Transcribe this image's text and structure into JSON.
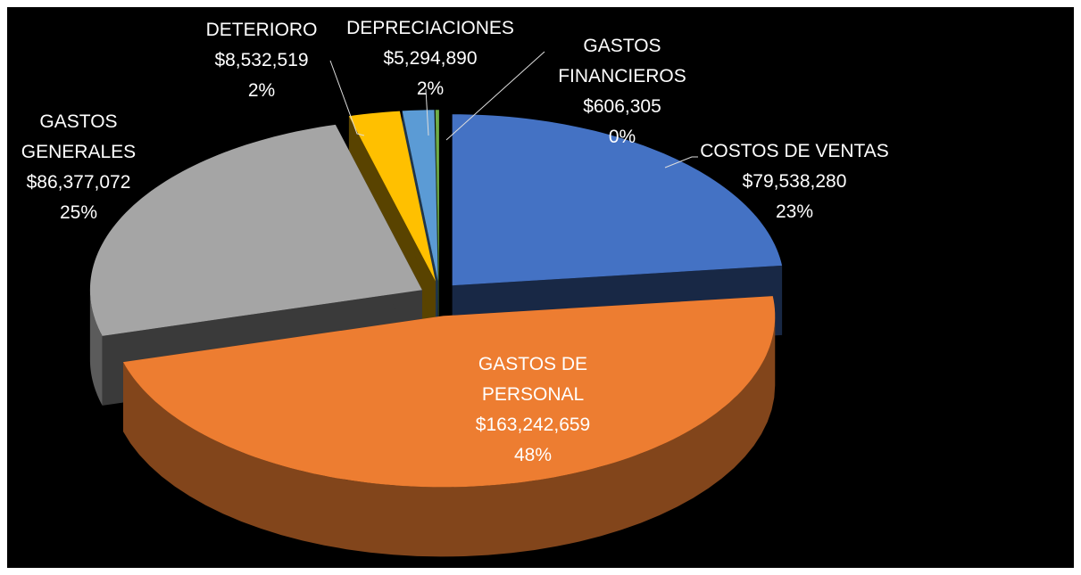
{
  "chart_data": {
    "type": "pie3d",
    "categories": [
      "COSTOS DE VENTAS",
      "GASTOS DE PERSONAL",
      "GASTOS GENERALES",
      "DETERIORO",
      "DEPRECIACIONES",
      "GASTOS FINANCIEROS"
    ],
    "values": [
      79538280,
      163242659,
      86377072,
      8532519,
      5294890,
      606305
    ],
    "value_labels": [
      "$79,538,280",
      "$163,242,659",
      "$86,377,072",
      "$8,532,519",
      "$5,294,890",
      "$606,305"
    ],
    "percent_labels": [
      "23%",
      "48%",
      "25%",
      "2%",
      "2%",
      "0%"
    ],
    "colors": [
      "#4472c4",
      "#ed7d31",
      "#a5a5a5",
      "#ffc000",
      "#5b9bd5",
      "#70ad47"
    ]
  }
}
